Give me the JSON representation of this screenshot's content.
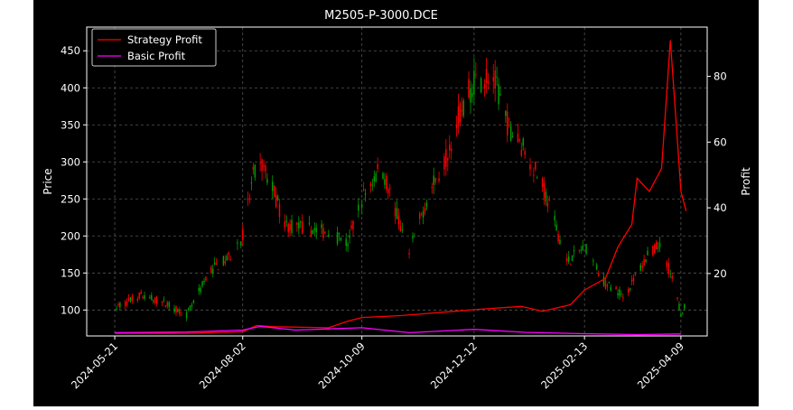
{
  "chart_data": {
    "type": "candlestick",
    "title": "M2505-P-3000.DCE",
    "xlabel": "",
    "ylabel": "Price",
    "y2label": "Profit",
    "ylim": [
      65,
      482
    ],
    "y2lim": [
      1,
      95
    ],
    "grid": true,
    "legend_position": "top-left",
    "x_ticks": [
      "2024-05-21",
      "2024-08-02",
      "2024-10-09",
      "2024-12-12",
      "2025-02-13",
      "2025-04-09"
    ],
    "y_ticks": [
      100,
      150,
      200,
      250,
      300,
      350,
      400,
      450
    ],
    "y2_ticks": [
      20,
      40,
      60,
      80
    ],
    "colors": {
      "up": "#ff0000",
      "down": "#00a000",
      "strategy": "#ff0000",
      "basic": "#ff00ff",
      "grid": "#555555",
      "background": "#000000"
    },
    "price_path": [
      [
        "2024-05-21",
        103
      ],
      [
        "2024-06-05",
        120
      ],
      [
        "2024-06-20",
        108
      ],
      [
        "2024-07-01",
        93
      ],
      [
        "2024-07-15",
        155
      ],
      [
        "2024-07-25",
        170
      ],
      [
        "2024-08-02",
        200
      ],
      [
        "2024-08-08",
        280
      ],
      [
        "2024-08-13",
        295
      ],
      [
        "2024-08-19",
        265
      ],
      [
        "2024-08-26",
        215
      ],
      [
        "2024-09-06",
        210
      ],
      [
        "2024-09-20",
        205
      ],
      [
        "2024-10-01",
        190
      ],
      [
        "2024-10-09",
        250
      ],
      [
        "2024-10-20",
        295
      ],
      [
        "2024-10-28",
        235
      ],
      [
        "2024-11-05",
        175
      ],
      [
        "2024-11-15",
        250
      ],
      [
        "2024-11-25",
        300
      ],
      [
        "2024-12-03",
        360
      ],
      [
        "2024-12-12",
        410
      ],
      [
        "2024-12-22",
        420
      ],
      [
        "2025-01-01",
        345
      ],
      [
        "2025-01-12",
        310
      ],
      [
        "2025-01-22",
        255
      ],
      [
        "2025-02-03",
        165
      ],
      [
        "2025-02-13",
        185
      ],
      [
        "2025-02-25",
        135
      ],
      [
        "2025-03-08",
        120
      ],
      [
        "2025-03-20",
        170
      ],
      [
        "2025-03-29",
        190
      ],
      [
        "2025-04-04",
        140
      ],
      [
        "2025-04-09",
        95
      ],
      [
        "2025-04-12",
        110
      ]
    ],
    "series": [
      {
        "name": "Strategy Profit",
        "axis": "right",
        "points": [
          [
            "2024-05-21",
            1.8
          ],
          [
            "2024-07-01",
            1.8
          ],
          [
            "2024-08-02",
            2.3
          ],
          [
            "2024-08-10",
            4.2
          ],
          [
            "2024-08-20",
            3.8
          ],
          [
            "2024-09-20",
            3.5
          ],
          [
            "2024-10-01",
            5.5
          ],
          [
            "2024-10-09",
            6.6
          ],
          [
            "2024-11-01",
            7.2
          ],
          [
            "2024-12-12",
            9.0
          ],
          [
            "2025-01-08",
            10.0
          ],
          [
            "2025-01-20",
            8.5
          ],
          [
            "2025-02-05",
            10.5
          ],
          [
            "2025-02-13",
            15.0
          ],
          [
            "2025-02-25",
            18.5
          ],
          [
            "2025-03-04",
            28.0
          ],
          [
            "2025-03-12",
            35.0
          ],
          [
            "2025-03-15",
            49.0
          ],
          [
            "2025-03-22",
            45.0
          ],
          [
            "2025-03-29",
            52.0
          ],
          [
            "2025-04-03",
            91.0
          ],
          [
            "2025-04-06",
            68.0
          ],
          [
            "2025-04-09",
            45.0
          ],
          [
            "2025-04-12",
            39.0
          ]
        ]
      },
      {
        "name": "Basic Profit",
        "axis": "right",
        "points": [
          [
            "2024-05-21",
            2.0
          ],
          [
            "2024-07-01",
            2.2
          ],
          [
            "2024-08-02",
            2.8
          ],
          [
            "2024-08-12",
            3.9
          ],
          [
            "2024-09-01",
            2.8
          ],
          [
            "2024-10-09",
            3.5
          ],
          [
            "2024-11-05",
            2.0
          ],
          [
            "2024-12-12",
            3.0
          ],
          [
            "2025-01-10",
            2.1
          ],
          [
            "2025-02-13",
            1.7
          ],
          [
            "2025-03-15",
            1.4
          ],
          [
            "2025-04-09",
            1.6
          ]
        ]
      }
    ]
  }
}
